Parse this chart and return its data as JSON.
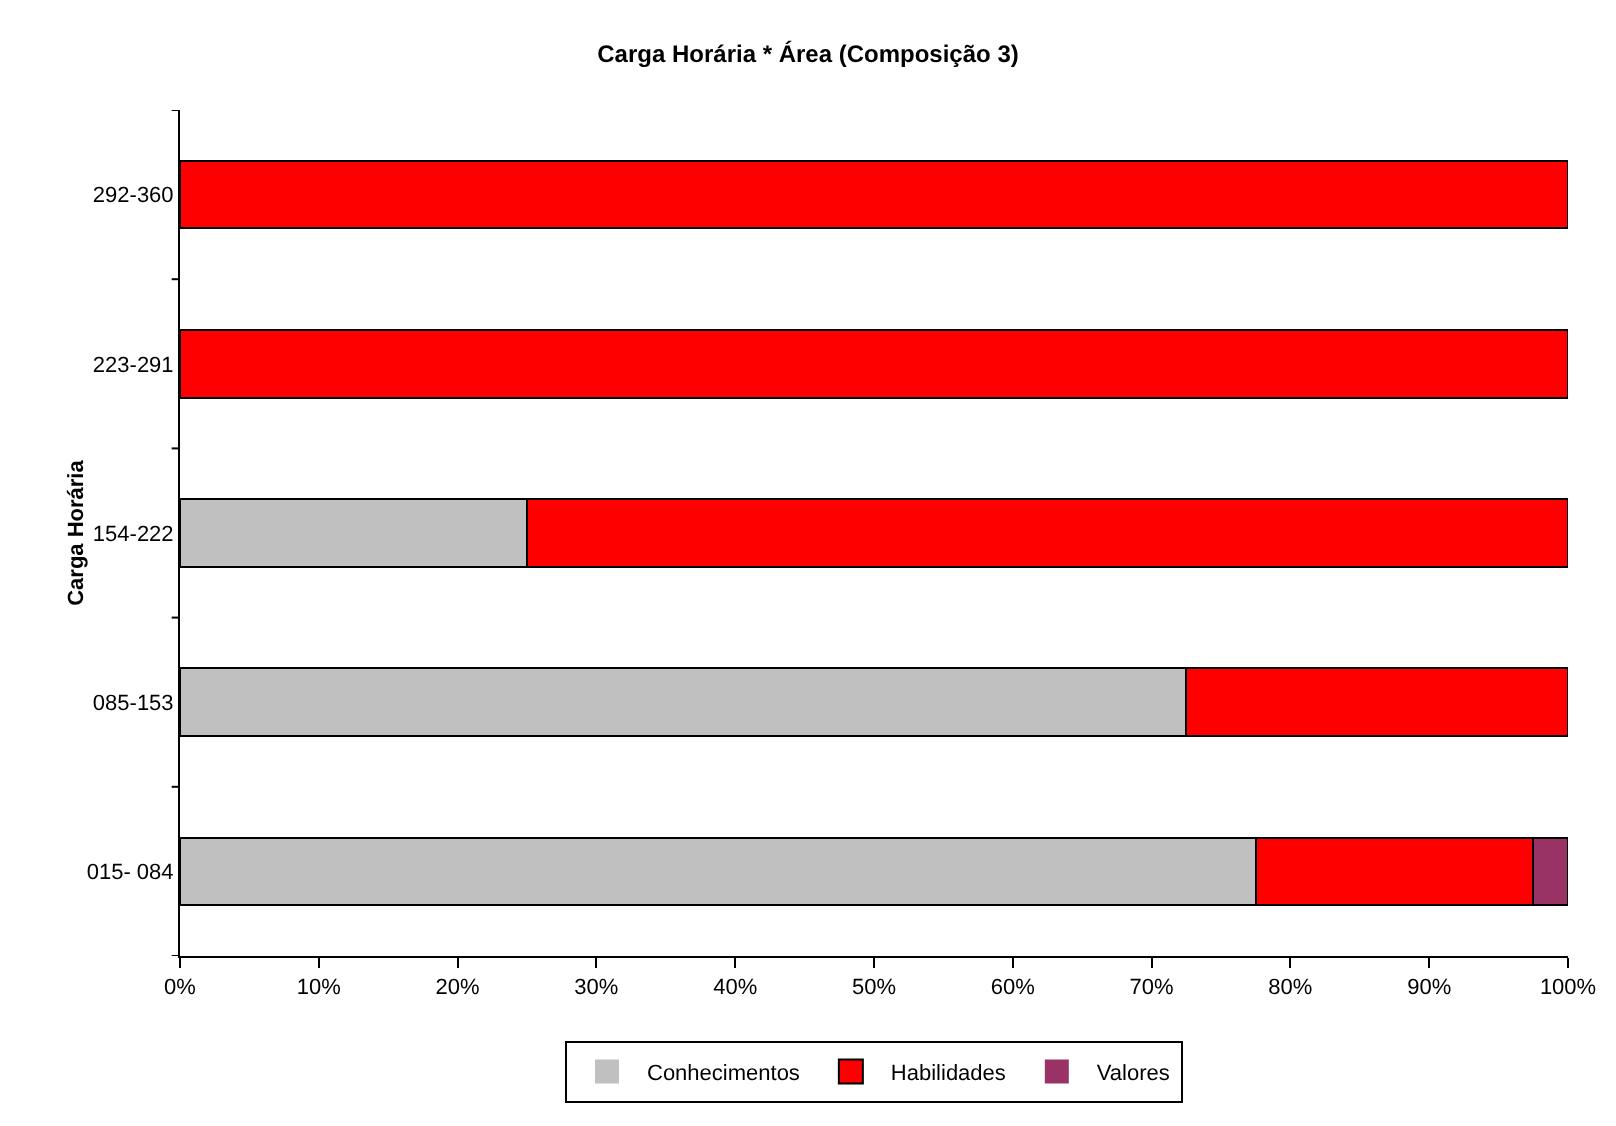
{
  "chart_data": {
    "type": "bar",
    "orientation": "horizontal",
    "stacked": true,
    "title": "Carga Horária * Área (Composição 3)",
    "ylabel": "Carga Horária",
    "categories": [
      "292-360",
      "223-291",
      "154-222",
      "085-153",
      "015- 084"
    ],
    "series": [
      {
        "name": "Conhecimentos",
        "color": "#c0c0c0",
        "values": [
          0,
          0,
          25,
          72.5,
          77.5
        ]
      },
      {
        "name": "Habilidades",
        "color": "#ff0000",
        "values": [
          100,
          100,
          75,
          27.5,
          20
        ]
      },
      {
        "name": "Valores",
        "color": "#993366",
        "values": [
          0,
          0,
          0,
          0,
          2.5
        ]
      }
    ],
    "xlim": [
      0,
      100
    ],
    "xticks": [
      {
        "value": 0,
        "label": "0%"
      },
      {
        "value": 10,
        "label": "10%"
      },
      {
        "value": 20,
        "label": "20%"
      },
      {
        "value": 30,
        "label": "30%"
      },
      {
        "value": 40,
        "label": "40%"
      },
      {
        "value": 50,
        "label": "50%"
      },
      {
        "value": 60,
        "label": "60%"
      },
      {
        "value": 70,
        "label": "70%"
      },
      {
        "value": 80,
        "label": "80%"
      },
      {
        "value": 90,
        "label": "90%"
      },
      {
        "value": 100,
        "label": "100%"
      }
    ],
    "grid": false,
    "legend": "bottom"
  }
}
